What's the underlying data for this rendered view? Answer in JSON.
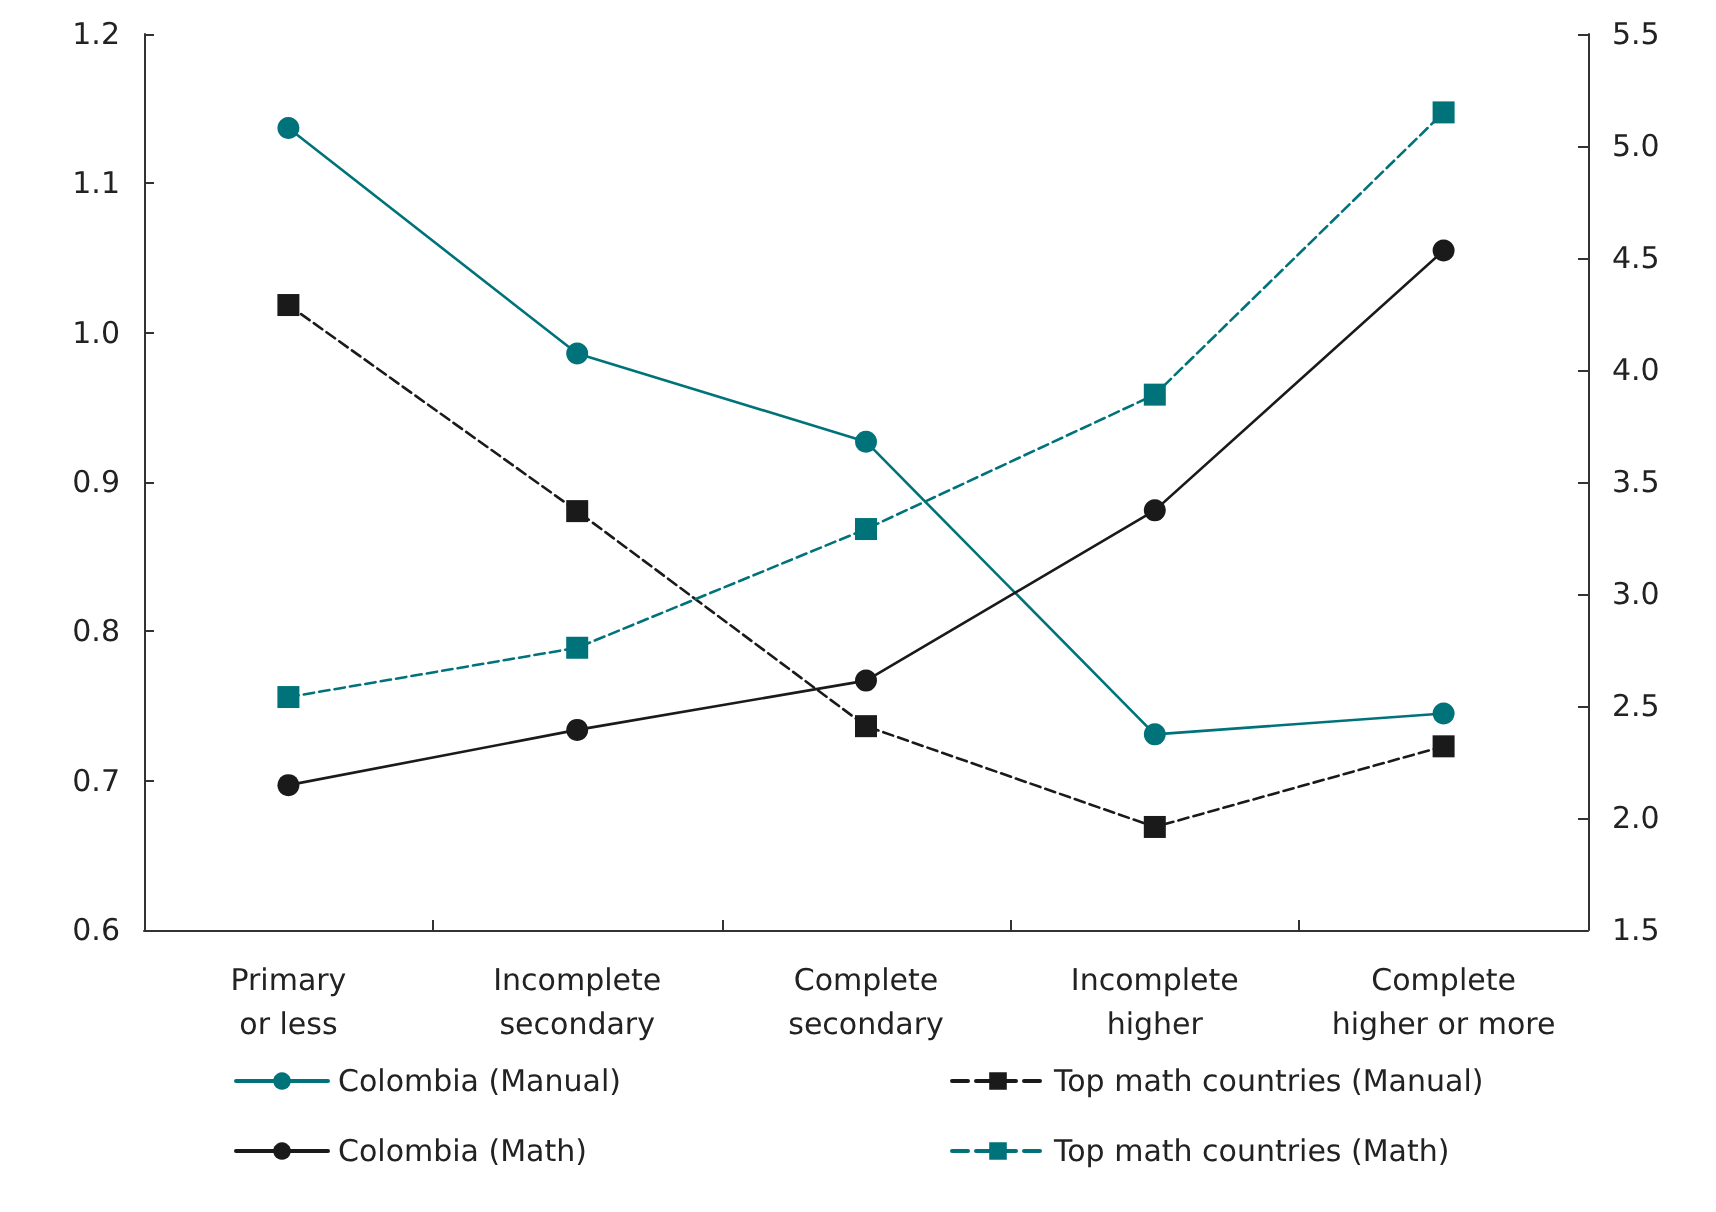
{
  "chart_data": {
    "type": "line",
    "categories": [
      "Primary\nor less",
      "Incomplete\nsecondary",
      "Complete\nsecondary",
      "Incomplete\nhigher",
      "Complete\nhigher or more"
    ],
    "series": [
      {
        "name": "Colombia (Manual)",
        "color": "#00737a",
        "marker": "circle",
        "line_style": "solid",
        "values": [
          1.137,
          0.986,
          0.927,
          0.731,
          0.745
        ]
      },
      {
        "name": "Top math countries (Manual)",
        "color": "#1a1a1a",
        "marker": "square",
        "line_style": "dashed",
        "axis": "y2",
        "values": [
          4.29,
          3.37,
          2.41,
          1.96,
          2.32
        ]
      },
      {
        "name": "Colombia (Math)",
        "color": "#1a1a1a",
        "marker": "circle",
        "line_style": "solid",
        "values": [
          0.697,
          0.734,
          0.767,
          0.881,
          1.055
        ]
      },
      {
        "name": "Top math countries (Math)",
        "color": "#00737a",
        "marker": "square",
        "line_style": "dashed",
        "axis": "y2",
        "values": [
          2.54,
          2.76,
          3.29,
          3.89,
          5.15
        ]
      }
    ],
    "ylim": [
      0.6,
      1.2
    ],
    "yticks": [
      0.6,
      0.7,
      0.8,
      0.9,
      {
        "value": 1,
        "label": "1.0"
      },
      1.1,
      1.2
    ],
    "y2lim": [
      1.5,
      5.5
    ],
    "y2ticks": [
      1.5,
      {
        "value": 2,
        "label": "2.0"
      },
      2.5,
      {
        "value": 3,
        "label": "3.0"
      },
      3.5,
      {
        "value": 4,
        "label": "4.0"
      },
      4.5,
      {
        "value": 5,
        "label": "5.0"
      },
      5.5
    ],
    "grid": false,
    "legend": "bottom"
  }
}
